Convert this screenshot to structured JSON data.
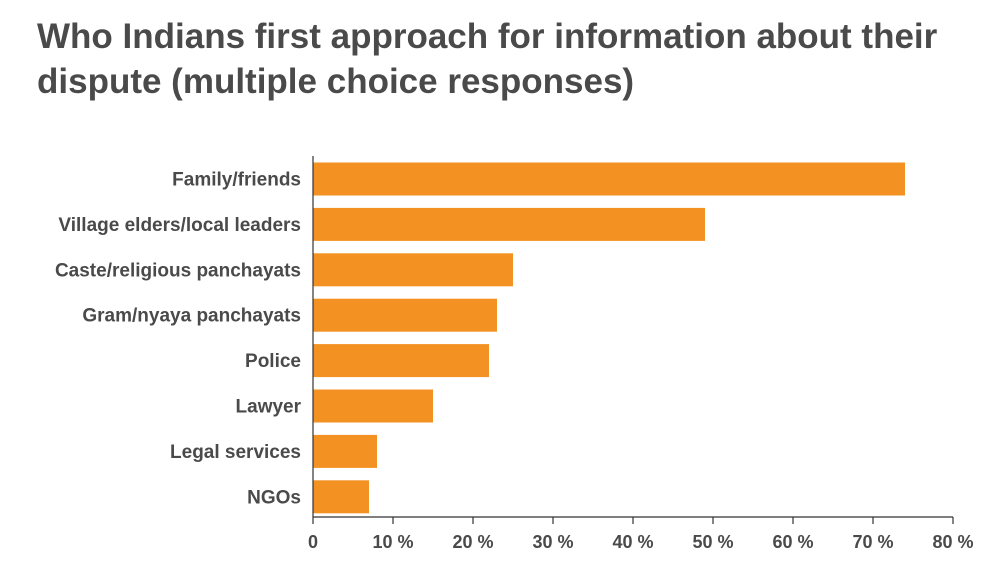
{
  "chart_data": {
    "type": "bar",
    "orientation": "horizontal",
    "title": "Who Indians first approach for information about their dispute (multiple choice responses)",
    "xlabel": "",
    "ylabel": "",
    "categories": [
      "Family/friends",
      "Village elders/local leaders",
      "Caste/religious panchayats",
      "Gram/nyaya panchayats",
      "Police",
      "Lawyer",
      "Legal services",
      "NGOs"
    ],
    "values": [
      74,
      49,
      25,
      23,
      22,
      15,
      8,
      7
    ],
    "xlim": [
      0,
      80
    ],
    "ticks": [
      0,
      10,
      20,
      30,
      40,
      50,
      60,
      70,
      80
    ],
    "tick_labels": [
      "0",
      "10 %",
      "20 %",
      "30 %",
      "40 %",
      "50 %",
      "60 %",
      "70 %",
      "80 %"
    ],
    "bar_color": "#f39223",
    "text_color": "#4a4a4a",
    "grid": false,
    "legend": "none"
  }
}
